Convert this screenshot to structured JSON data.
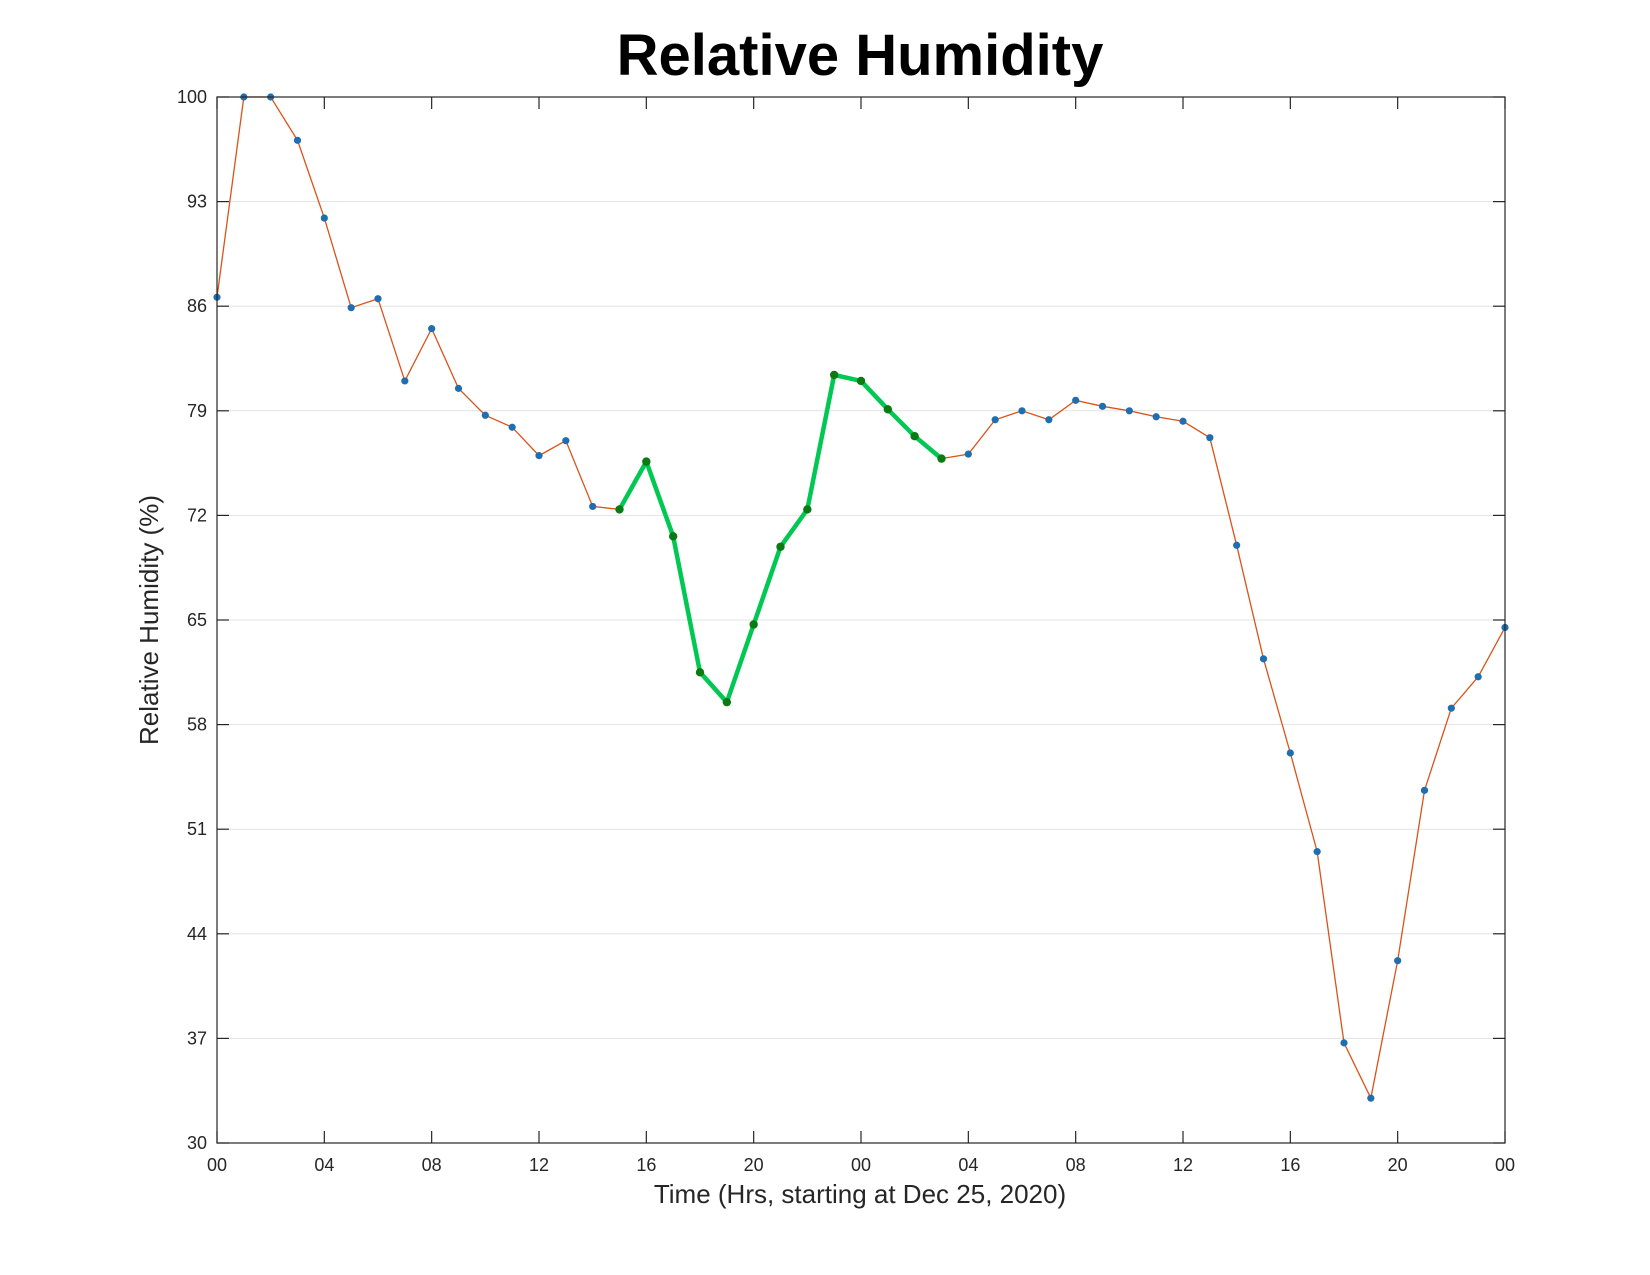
{
  "chart_data": {
    "type": "line",
    "title": "Relative Humidity",
    "xlabel": "Time (Hrs, starting at Dec 25, 2020)",
    "ylabel": "Relative Humidity (%)",
    "xlim": [
      0,
      48
    ],
    "ylim": [
      30,
      100
    ],
    "x_ticks": [
      0,
      4,
      8,
      12,
      16,
      20,
      24,
      28,
      32,
      36,
      40,
      44,
      48
    ],
    "x_tick_labels": [
      "00",
      "04",
      "08",
      "12",
      "16",
      "20",
      "00",
      "04",
      "08",
      "12",
      "16",
      "20",
      "00"
    ],
    "y_ticks": [
      30,
      37,
      44,
      51,
      58,
      65,
      72,
      79,
      86,
      93,
      100
    ],
    "y_tick_labels": [
      "30",
      "37",
      "44",
      "51",
      "58",
      "65",
      "72",
      "79",
      "86",
      "93",
      "100"
    ],
    "grid": "horizontal",
    "x": [
      0,
      1,
      2,
      3,
      4,
      5,
      6,
      7,
      8,
      9,
      10,
      11,
      12,
      13,
      14,
      15,
      16,
      17,
      18,
      19,
      20,
      21,
      22,
      23,
      24,
      25,
      26,
      27,
      28,
      29,
      30,
      31,
      32,
      33,
      34,
      35,
      36,
      37,
      38,
      39,
      40,
      41,
      42,
      43,
      44,
      45,
      46,
      47,
      48
    ],
    "series": [
      {
        "values": [
          86.6,
          100,
          100,
          97.1,
          91.9,
          85.9,
          86.5,
          81.0,
          84.5,
          80.5,
          78.7,
          77.9,
          76.0,
          77.0,
          72.6,
          72.4,
          75.6,
          70.6,
          61.5,
          59.5,
          64.7,
          69.9,
          72.4,
          81.4,
          81.0,
          79.1,
          77.3,
          75.8,
          76.1,
          78.4,
          79.0,
          78.4,
          79.7,
          79.3,
          79.0,
          78.6,
          78.3,
          77.2,
          70.0,
          62.4,
          56.1,
          49.5,
          36.7,
          33.0,
          42.2,
          53.6,
          59.1,
          61.2,
          64.5
        ],
        "color": "#d95319",
        "marker_color": "#1f6fb0"
      },
      {
        "x_range": [
          15,
          27
        ],
        "color": "#00c853",
        "marker_color": "#0a7a12"
      }
    ]
  }
}
